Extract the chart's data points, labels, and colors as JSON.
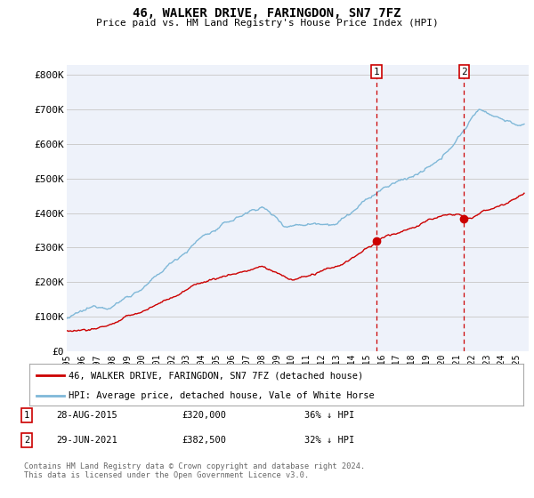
{
  "title": "46, WALKER DRIVE, FARINGDON, SN7 7FZ",
  "subtitle": "Price paid vs. HM Land Registry's House Price Index (HPI)",
  "ylabel_ticks": [
    "£0",
    "£100K",
    "£200K",
    "£300K",
    "£400K",
    "£500K",
    "£600K",
    "£700K",
    "£800K"
  ],
  "ytick_values": [
    0,
    100000,
    200000,
    300000,
    400000,
    500000,
    600000,
    700000,
    800000
  ],
  "ylim": [
    0,
    830000
  ],
  "xlim_start": 1995.0,
  "xlim_end": 2025.8,
  "transaction1": {
    "date": 2015.65,
    "price": 320000,
    "label": "1",
    "text": "28-AUG-2015",
    "amount": "£320,000",
    "pct": "36% ↓ HPI"
  },
  "transaction2": {
    "date": 2021.49,
    "price": 382500,
    "label": "2",
    "text": "29-JUN-2021",
    "amount": "£382,500",
    "pct": "32% ↓ HPI"
  },
  "legend_line1": "46, WALKER DRIVE, FARINGDON, SN7 7FZ (detached house)",
  "legend_line2": "HPI: Average price, detached house, Vale of White Horse",
  "footer": "Contains HM Land Registry data © Crown copyright and database right 2024.\nThis data is licensed under the Open Government Licence v3.0.",
  "hpi_color": "#7fb8d8",
  "price_color": "#cc0000",
  "vline_color": "#cc0000",
  "background_color": "#ffffff",
  "plot_bg_color": "#eef2fa",
  "grid_color": "#cccccc",
  "xticks": [
    1995,
    1996,
    1997,
    1998,
    1999,
    2000,
    2001,
    2002,
    2003,
    2004,
    2005,
    2006,
    2007,
    2008,
    2009,
    2010,
    2011,
    2012,
    2013,
    2014,
    2015,
    2016,
    2017,
    2018,
    2019,
    2020,
    2021,
    2022,
    2023,
    2024,
    2025
  ]
}
